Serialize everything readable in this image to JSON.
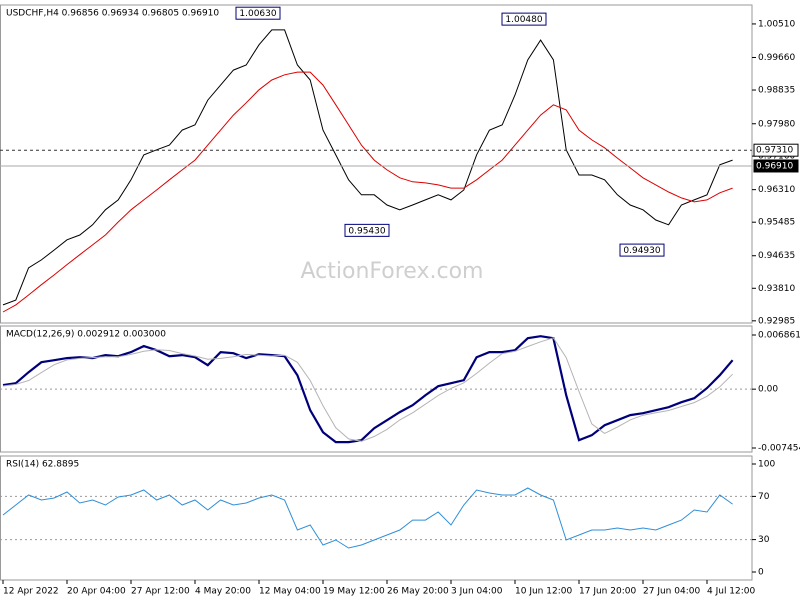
{
  "chart_data": [
    {
      "type": "line",
      "title": "USDCHF,H4  0.96856 0.96934 0.96805 0.96910",
      "watermark": "ActionForex.com",
      "ylim": [
        0.9293,
        1.0099
      ],
      "yticks": [
        {
          "value": 1.0051,
          "label": "1.00510"
        },
        {
          "value": 0.9966,
          "label": "0.99660"
        },
        {
          "value": 0.98835,
          "label": "0.98835"
        },
        {
          "value": 0.9798,
          "label": "0.97980"
        },
        {
          "value": 0.9716,
          "label": "0.97160"
        },
        {
          "value": 0.9631,
          "label": "0.96310"
        },
        {
          "value": 0.95485,
          "label": "0.95485"
        },
        {
          "value": 0.94635,
          "label": "0.94635"
        },
        {
          "value": 0.9381,
          "label": "0.93810"
        },
        {
          "value": 0.92985,
          "label": "0.92985"
        }
      ],
      "series": [
        {
          "color": "#000000",
          "values": [
            0.9339,
            0.9351,
            0.9433,
            0.9453,
            0.9478,
            0.9504,
            0.9516,
            0.9542,
            0.958,
            0.9605,
            0.9656,
            0.9719,
            0.9732,
            0.9744,
            0.9782,
            0.9795,
            0.9858,
            0.9896,
            0.9934,
            0.9947,
            0.9998,
            1.0036,
            1.0036,
            0.9947,
            0.9909,
            0.9782,
            0.9719,
            0.9656,
            0.9618,
            0.9618,
            0.9592,
            0.958,
            0.9592,
            0.9605,
            0.9618,
            0.9605,
            0.963,
            0.9719,
            0.9782,
            0.9795,
            0.9871,
            0.996,
            1.001,
            0.996,
            0.9732,
            0.9668,
            0.9668,
            0.9656,
            0.9618,
            0.9592,
            0.958,
            0.9554,
            0.9542,
            0.9592,
            0.9605,
            0.9618,
            0.9694,
            0.9706
          ]
        },
        {
          "color": "#dd0000",
          "values": [
            0.9321,
            0.9339,
            0.9364,
            0.939,
            0.9415,
            0.9441,
            0.9466,
            0.9491,
            0.9516,
            0.9549,
            0.958,
            0.9605,
            0.963,
            0.9656,
            0.9681,
            0.9706,
            0.9744,
            0.9782,
            0.982,
            0.9851,
            0.9884,
            0.9909,
            0.9922,
            0.9929,
            0.9929,
            0.9896,
            0.9846,
            0.9795,
            0.9744,
            0.9706,
            0.9681,
            0.9661,
            0.9651,
            0.9648,
            0.9643,
            0.9635,
            0.9635,
            0.9656,
            0.9681,
            0.9706,
            0.9744,
            0.9782,
            0.982,
            0.9846,
            0.9833,
            0.9782,
            0.9757,
            0.9737,
            0.9711,
            0.9686,
            0.9661,
            0.9643,
            0.9625,
            0.961,
            0.96,
            0.9605,
            0.9623,
            0.9635
          ]
        }
      ],
      "hlines": [
        {
          "value": 0.9731,
          "label": "0.97310",
          "style": "dashed"
        },
        {
          "value": 0.9691,
          "label": "0.96910",
          "style": "solid"
        }
      ],
      "annotations": [
        {
          "value": 1.0063,
          "label": "1.00630",
          "side": "high"
        },
        {
          "value": 0.9543,
          "label": "0.95430",
          "side": "low"
        },
        {
          "value": 1.0048,
          "label": "1.00480",
          "side": "high"
        },
        {
          "value": 0.9493,
          "label": "0.94930",
          "side": "low"
        }
      ]
    },
    {
      "type": "line",
      "title": "MACD(12,26,9) 0.002912 0.003000",
      "ylim": [
        -0.00796,
        0.008
      ],
      "yticks": [
        0.006861,
        {
          "value": 0,
          "label": "0.00"
        },
        -0.007454
      ],
      "levels": [
        0
      ],
      "series": [
        {
          "color": "#00007a",
          "values": [
            0.00051,
            0.00076,
            0.00215,
            0.00342,
            0.00367,
            0.00393,
            0.00405,
            0.00393,
            0.00431,
            0.00418,
            0.00469,
            0.00545,
            0.00494,
            0.00418,
            0.00431,
            0.00405,
            0.00304,
            0.00469,
            0.00456,
            0.00393,
            0.00443,
            0.00431,
            0.00418,
            0.00177,
            -0.00266,
            -0.00545,
            -0.00671,
            -0.00671,
            -0.00646,
            -0.00494,
            -0.00393,
            -0.00291,
            -0.00203,
            -0.00076,
            0.00038,
            0.00076,
            0.00114,
            0.00405,
            0.00469,
            0.00469,
            0.00494,
            0.00646,
            0.00671,
            0.00646,
            -0.00076,
            -0.00646,
            -0.00583,
            -0.00456,
            -0.00393,
            -0.00329,
            -0.00304,
            -0.00266,
            -0.00228,
            -0.00165,
            -0.00114,
            0.00013,
            0.00177,
            0.00367
          ]
        },
        {
          "color": "#b4b4b4",
          "values": [
            0.0004,
            0.0006,
            0.0011,
            0.0021,
            0.0031,
            0.0037,
            0.0039,
            0.004,
            0.0041,
            0.0041,
            0.0044,
            0.0048,
            0.005,
            0.0049,
            0.0045,
            0.0042,
            0.0038,
            0.0039,
            0.0041,
            0.0044,
            0.0043,
            0.0042,
            0.0043,
            0.0034,
            0.0011,
            -0.0021,
            -0.0049,
            -0.0063,
            -0.0066,
            -0.006,
            -0.0051,
            -0.0039,
            -0.003,
            -0.0019,
            -0.0008,
            0.0001,
            0.0008,
            0.002,
            0.0033,
            0.0045,
            0.0048,
            0.0054,
            0.006,
            0.0065,
            0.004,
            -0.0003,
            -0.0044,
            -0.0056,
            -0.0048,
            -0.0039,
            -0.0033,
            -0.003,
            -0.0027,
            -0.0022,
            -0.0017,
            -0.0009,
            0.0003,
            0.0019
          ]
        }
      ]
    },
    {
      "type": "line",
      "title": "RSI(14) 62.8895",
      "ylim": [
        -7.4,
        107.4
      ],
      "yticks": [
        100,
        70,
        30,
        0
      ],
      "levels": [
        70,
        30
      ],
      "categories": [
        "12 Apr 2022",
        null,
        null,
        null,
        null,
        "20 Apr 04:00",
        null,
        null,
        null,
        null,
        "27 Apr 12:00",
        null,
        null,
        null,
        null,
        "4 May 20:00",
        null,
        null,
        null,
        null,
        "12 May 04:00",
        null,
        null,
        null,
        null,
        "19 May 12:00",
        null,
        null,
        null,
        null,
        "26 May 20:00",
        null,
        null,
        null,
        null,
        "3 Jun 04:00",
        null,
        null,
        null,
        null,
        "10 Jun 12:00",
        null,
        null,
        null,
        null,
        "17 Jun 20:00",
        null,
        null,
        null,
        null,
        "27 Jun 04:00",
        null,
        null,
        null,
        null,
        "4 Jul 12:00",
        null,
        null
      ],
      "series": [
        {
          "color": "#2f8fd8",
          "values": [
            52.8,
            62.0,
            71.3,
            66.7,
            68.5,
            74.1,
            63.9,
            66.7,
            62.0,
            69.4,
            71.3,
            75.9,
            66.7,
            71.3,
            62.0,
            66.7,
            57.4,
            66.7,
            62.0,
            63.9,
            68.5,
            71.3,
            66.7,
            38.9,
            43.5,
            25.0,
            29.6,
            22.2,
            25.0,
            29.6,
            34.3,
            38.9,
            48.1,
            48.1,
            55.6,
            43.5,
            62.0,
            75.9,
            73.1,
            71.3,
            71.3,
            77.8,
            71.3,
            66.7,
            29.6,
            34.3,
            38.9,
            38.9,
            40.7,
            38.9,
            40.7,
            38.9,
            43.5,
            48.1,
            57.4,
            55.6,
            71.3,
            62.9
          ]
        }
      ]
    }
  ]
}
